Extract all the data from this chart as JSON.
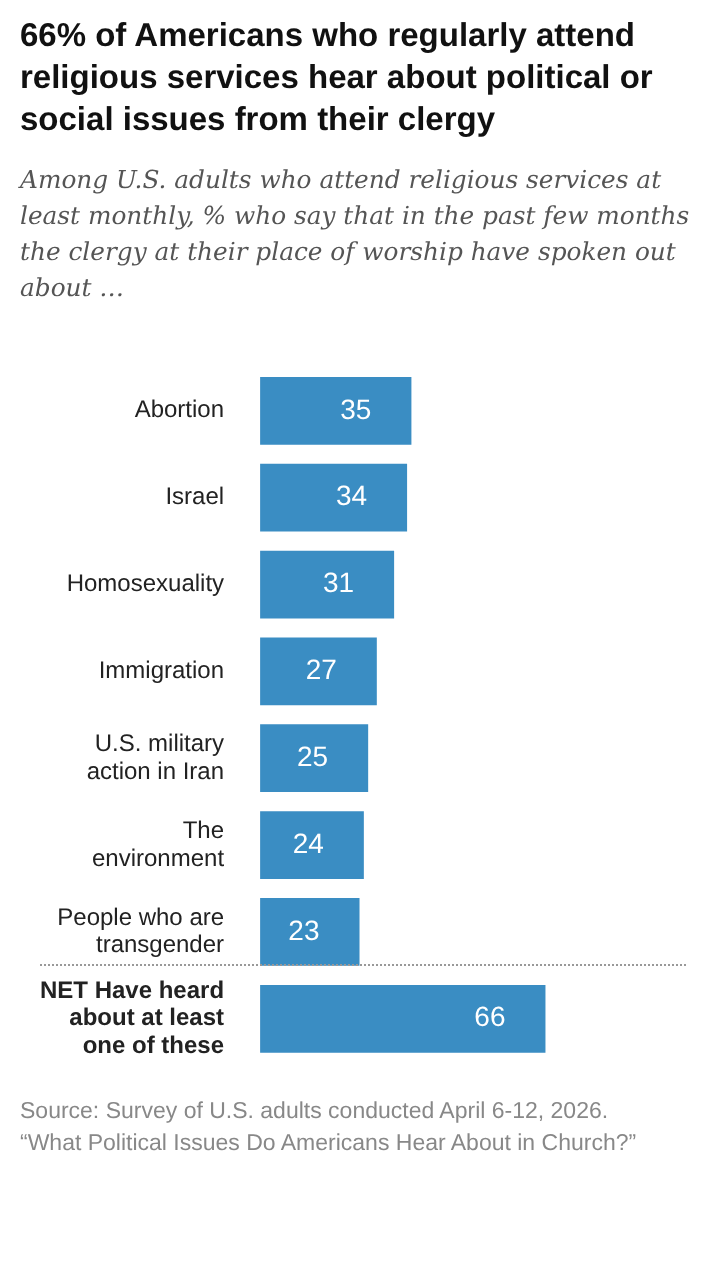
{
  "chart_data": {
    "type": "bar",
    "orientation": "horizontal",
    "title": "66% of Americans who regularly attend religious services hear about political or social issues from their clergy",
    "subtitle": "Among U.S. adults who attend religious services at least monthly, % who say that in the past few months the clergy at their place of worship have spoken out about …",
    "categories": [
      "Abortion",
      "Israel",
      "Homosexuality",
      "Immigration",
      "U.S. military action in Iran",
      "The environment",
      "People who are transgender",
      "NET Have heard about at least one of these"
    ],
    "values": [
      35,
      34,
      31,
      27,
      25,
      24,
      23,
      66
    ],
    "color": "#3a8dc3",
    "data_labels": true,
    "legend": false,
    "annotations": [
      "Source: Survey of U.S. adults conducted April 6-12, 2026.",
      "“What Political Issues Do Americans Hear About in Church?”"
    ]
  }
}
